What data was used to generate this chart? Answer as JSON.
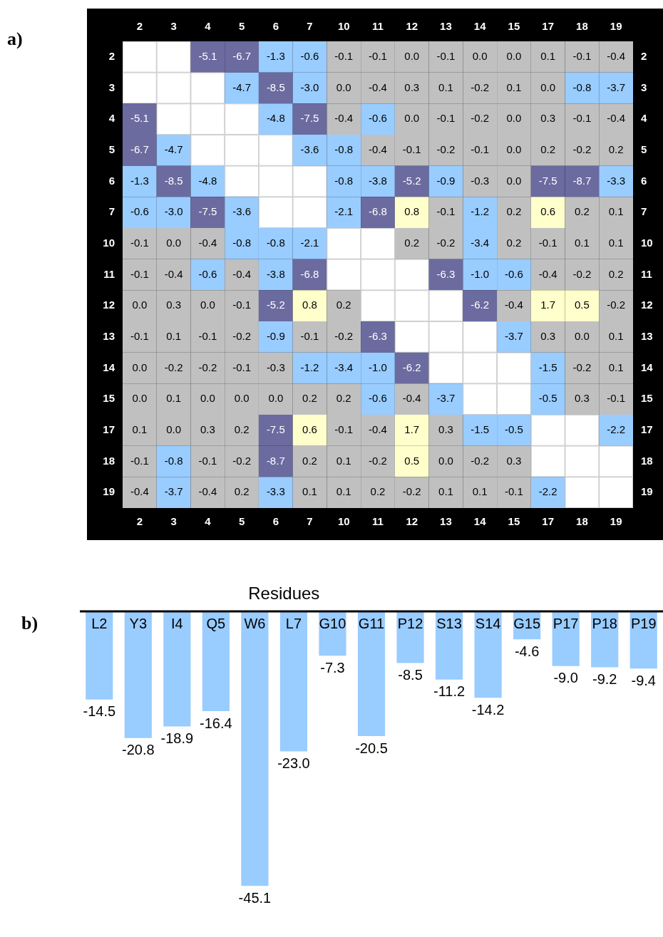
{
  "chart_data": [
    {
      "type": "heatmap",
      "annotations": [
        "a)"
      ],
      "cell_labels": [
        [
          null,
          null,
          "-5.1",
          "-6.7",
          "-1.3",
          "-0.6",
          "-0.1",
          "-0.1",
          "0.0",
          "-0.1",
          "0.0",
          "0.0",
          "0.1",
          "-0.1",
          "-0.4"
        ],
        [
          null,
          null,
          null,
          "-4.7",
          "-8.5",
          "-3.0",
          "0.0",
          "-0.4",
          "0.3",
          "0.1",
          "-0.2",
          "0.1",
          "0.0",
          "-0.8",
          "-3.7"
        ],
        [
          "-5.1",
          null,
          null,
          null,
          "-4.8",
          "-7.5",
          "-0.4",
          "-0.6",
          "0.0",
          "-0.1",
          "-0.2",
          "0.0",
          "0.3",
          "-0.1",
          "-0.4"
        ],
        [
          "-6.7",
          "-4.7",
          null,
          null,
          null,
          "-3.6",
          "-0.8",
          "-0.4",
          "-0.1",
          "-0.2",
          "-0.1",
          "0.0",
          "0.2",
          "-0.2",
          "0.2"
        ],
        [
          "-1.3",
          "-8.5",
          "-4.8",
          null,
          null,
          null,
          "-0.8",
          "-3.8",
          "-5.2",
          "-0.9",
          "-0.3",
          "0.0",
          "-7.5",
          "-8.7",
          "-3.3"
        ],
        [
          "-0.6",
          "-3.0",
          "-7.5",
          "-3.6",
          null,
          null,
          "-2.1",
          "-6.8",
          "0.8",
          "-0.1",
          "-1.2",
          "0.2",
          "0.6",
          "0.2",
          "0.1"
        ],
        [
          "-0.1",
          "0.0",
          "-0.4",
          "-0.8",
          "-0.8",
          "-2.1",
          null,
          null,
          "0.2",
          "-0.2",
          "-3.4",
          "0.2",
          "-0.1",
          "0.1",
          "0.1"
        ],
        [
          "-0.1",
          "-0.4",
          "-0.6",
          "-0.4",
          "-3.8",
          "-6.8",
          null,
          null,
          null,
          "-6.3",
          "-1.0",
          "-0.6",
          "-0.4",
          "-0.2",
          "0.2"
        ],
        [
          "0.0",
          "0.3",
          "0.0",
          "-0.1",
          "-5.2",
          "0.8",
          "0.2",
          null,
          null,
          null,
          "-6.2",
          "-0.4",
          "1.7",
          "0.5",
          "-0.2"
        ],
        [
          "-0.1",
          "0.1",
          "-0.1",
          "-0.2",
          "-0.9",
          "-0.1",
          "-0.2",
          "-6.3",
          null,
          null,
          null,
          "-3.7",
          "0.3",
          "0.0",
          "0.1"
        ],
        [
          "0.0",
          "-0.2",
          "-0.2",
          "-0.1",
          "-0.3",
          "-1.2",
          "-3.4",
          "-1.0",
          "-6.2",
          null,
          null,
          null,
          "-1.5",
          "-0.2",
          "0.1"
        ],
        [
          "0.0",
          "0.1",
          "0.0",
          "0.0",
          "0.0",
          "0.2",
          "0.2",
          "-0.6",
          "-0.4",
          "-3.7",
          null,
          null,
          "-0.5",
          "0.3",
          "-0.1"
        ],
        [
          "0.1",
          "0.0",
          "0.3",
          "0.2",
          "-7.5",
          "0.6",
          "-0.1",
          "-0.4",
          "1.7",
          "0.3",
          "-1.5",
          "-0.5",
          null,
          null,
          "-2.2"
        ],
        [
          "-0.1",
          "-0.8",
          "-0.1",
          "-0.2",
          "-8.7",
          "0.2",
          "0.1",
          "-0.2",
          "0.5",
          "0.0",
          "-0.2",
          "0.3",
          null,
          null,
          null
        ],
        [
          "-0.4",
          "-3.7",
          "-0.4",
          "0.2",
          "-3.3",
          "0.1",
          "0.1",
          "0.2",
          "-0.2",
          "0.1",
          "0.1",
          "-0.1",
          "-2.2",
          null,
          null
        ]
      ],
      "categories": [
        "2",
        "3",
        "4",
        "5",
        "6",
        "7",
        "10",
        "11",
        "12",
        "13",
        "14",
        "15",
        "17",
        "18",
        "19"
      ],
      "y_categories": [
        "2",
        "3",
        "4",
        "5",
        "6",
        "7",
        "10",
        "11",
        "12",
        "13",
        "14",
        "15",
        "17",
        "18",
        "19"
      ],
      "y2_categories": [
        "2",
        "3",
        "4",
        "5",
        "6",
        "7",
        "10",
        "11",
        "12",
        "13",
        "14",
        "15",
        "17",
        "18",
        "19"
      ],
      "cells": [
        [
          null,
          null,
          -5.1,
          -6.7,
          -1.3,
          -0.6,
          -0.1,
          -0.1,
          0.0,
          -0.1,
          0.0,
          0.0,
          0.1,
          -0.1,
          -0.4
        ],
        [
          null,
          null,
          null,
          -4.7,
          -8.5,
          -3.0,
          0.0,
          -0.4,
          0.3,
          0.1,
          -0.2,
          0.1,
          0.0,
          -0.8,
          -3.7
        ],
        [
          -5.1,
          null,
          null,
          null,
          -4.8,
          -7.5,
          -0.4,
          -0.6,
          0.0,
          -0.1,
          -0.2,
          0.0,
          0.3,
          -0.1,
          -0.4
        ],
        [
          -6.7,
          -4.7,
          null,
          null,
          null,
          -3.6,
          -0.8,
          -0.4,
          -0.1,
          -0.2,
          -0.1,
          0.0,
          0.2,
          -0.2,
          0.2
        ],
        [
          -1.3,
          -8.5,
          -4.8,
          null,
          null,
          null,
          -0.8,
          -3.8,
          -5.2,
          -0.9,
          -0.3,
          0.0,
          -7.5,
          -8.7,
          -3.3
        ],
        [
          -0.6,
          -3.0,
          -7.5,
          -3.6,
          null,
          null,
          -2.1,
          -6.8,
          0.8,
          -0.1,
          -1.2,
          0.2,
          0.6,
          0.2,
          0.1
        ],
        [
          -0.1,
          0.0,
          -0.4,
          -0.8,
          -0.8,
          -2.1,
          null,
          null,
          0.2,
          -0.2,
          -3.4,
          0.2,
          -0.1,
          0.1,
          0.1
        ],
        [
          -0.1,
          -0.4,
          -0.6,
          -0.4,
          -3.8,
          -6.8,
          null,
          null,
          null,
          -6.3,
          -1.0,
          -0.6,
          -0.4,
          -0.2,
          0.2
        ],
        [
          0.0,
          0.3,
          0.0,
          -0.1,
          -5.2,
          0.8,
          0.2,
          null,
          null,
          null,
          -6.2,
          -0.4,
          1.7,
          0.5,
          -0.2
        ],
        [
          -0.1,
          0.1,
          -0.1,
          -0.2,
          -0.9,
          -0.1,
          -0.2,
          -6.3,
          null,
          null,
          null,
          -3.7,
          0.3,
          0.0,
          0.1
        ],
        [
          0.0,
          -0.2,
          -0.2,
          -0.1,
          -0.3,
          -1.2,
          -3.4,
          -1.0,
          -6.2,
          null,
          null,
          null,
          -1.5,
          -0.2,
          0.1
        ],
        [
          0.0,
          0.1,
          0.0,
          0.0,
          0.0,
          0.2,
          0.2,
          -0.6,
          -0.4,
          -3.7,
          null,
          null,
          -0.5,
          0.3,
          -0.1
        ],
        [
          0.1,
          0.0,
          0.3,
          0.2,
          -7.5,
          0.6,
          -0.1,
          -0.4,
          1.7,
          0.3,
          -1.5,
          -0.5,
          null,
          null,
          -2.2
        ],
        [
          -0.1,
          -0.8,
          -0.1,
          -0.2,
          -8.7,
          0.2,
          0.1,
          -0.2,
          0.5,
          0.0,
          -0.2,
          0.3,
          null,
          null,
          null
        ],
        [
          -0.4,
          -3.7,
          -0.4,
          0.2,
          -3.3,
          0.1,
          0.1,
          0.2,
          -0.2,
          0.1,
          0.1,
          -0.1,
          -2.2,
          null,
          null
        ]
      ]
    },
    {
      "type": "bar",
      "annotations": [
        "b)"
      ],
      "xlabel": "Residues",
      "color": "#99ccff",
      "value_labels": [
        "-14.5",
        "-20.8",
        "-18.9",
        "-16.4",
        "-45.1",
        "-23.0",
        "-7.3",
        "-20.5",
        "-8.5",
        "-11.2",
        "-14.2",
        "-4.6",
        "-9.0",
        "-9.2",
        "-9.4"
      ],
      "categories": [
        "L2",
        "Y3",
        "I4",
        "Q5",
        "W6",
        "L7",
        "G10",
        "G11",
        "P12",
        "S13",
        "S14",
        "G15",
        "P17",
        "P18",
        "P19"
      ],
      "values": [
        -14.5,
        -20.8,
        -18.9,
        -16.4,
        -45.1,
        -23.0,
        -7.3,
        -20.5,
        -8.5,
        -11.2,
        -14.2,
        -4.6,
        -9.0,
        -9.2,
        -9.4
      ]
    }
  ]
}
